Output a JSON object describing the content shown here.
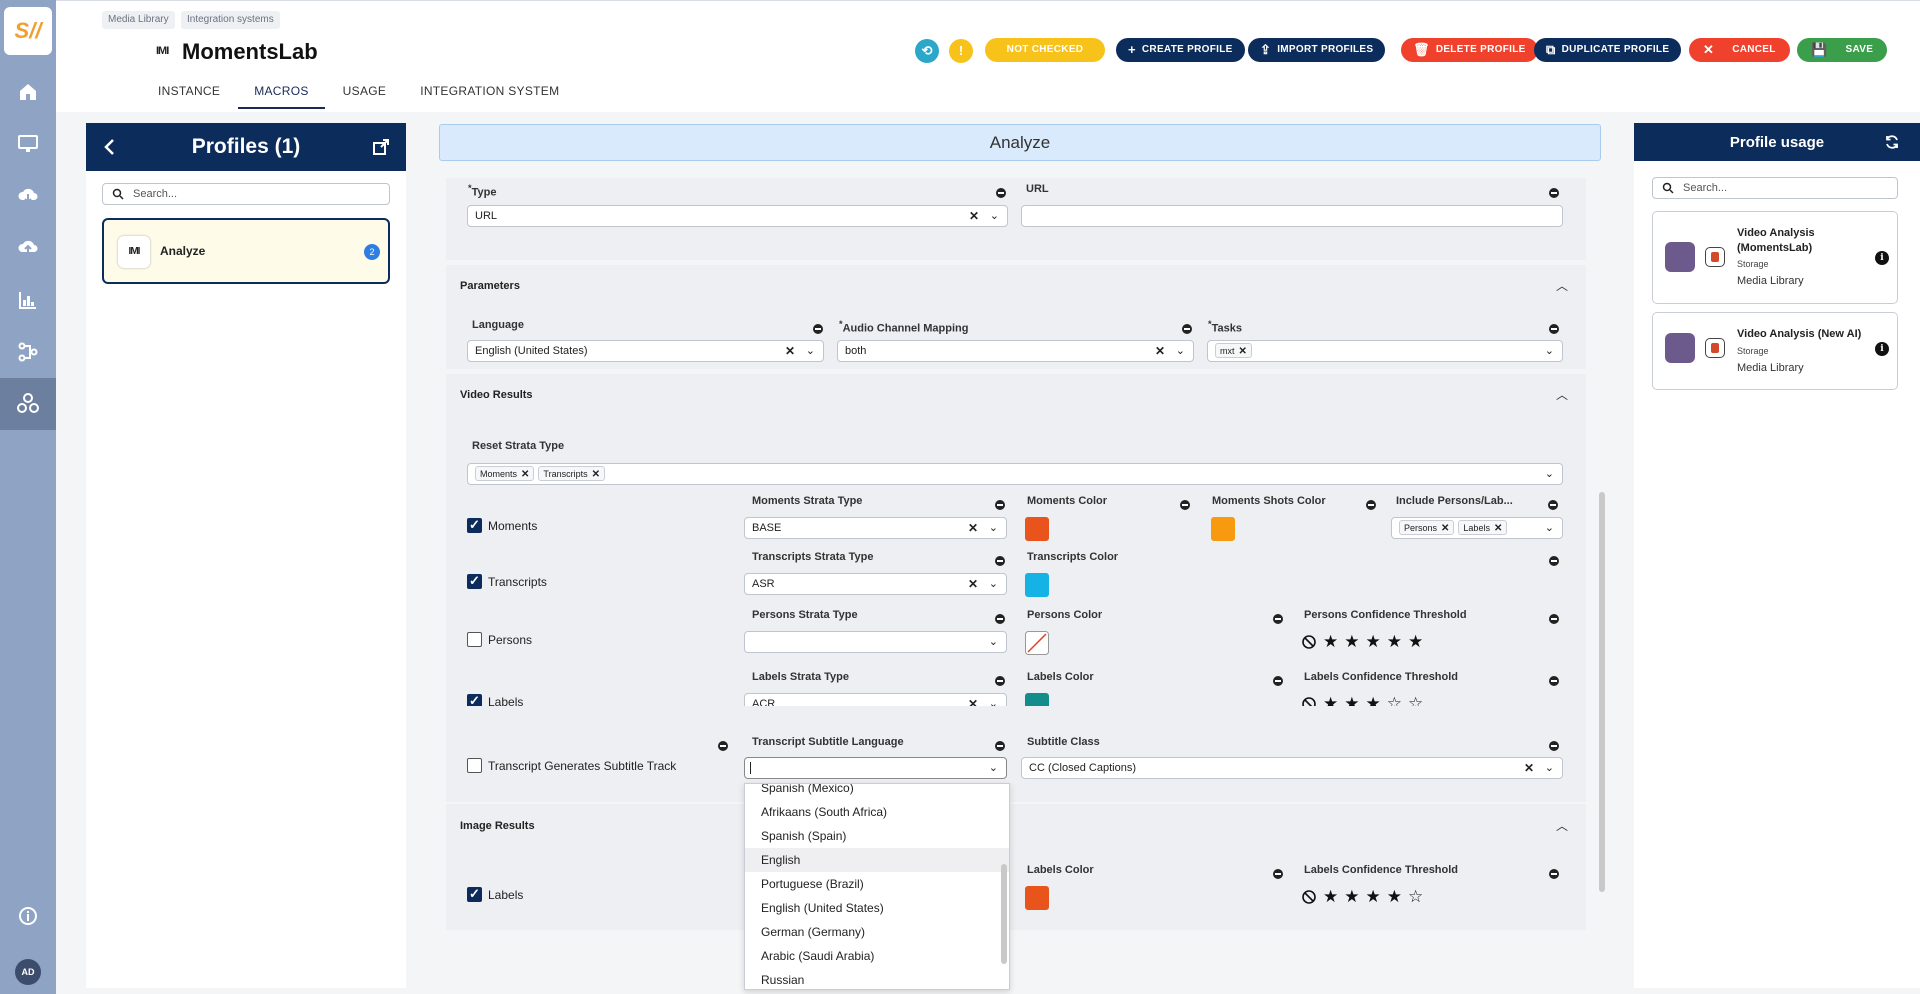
{
  "app": {
    "logo_text": "S//",
    "avatar": "AD"
  },
  "breadcrumb": [
    "Media Library",
    "Integration systems"
  ],
  "page": {
    "logo_text": "IMI",
    "title": "MomentsLab"
  },
  "tabs": [
    "INSTANCE",
    "MACROS",
    "USAGE",
    "INTEGRATION SYSTEM"
  ],
  "active_tab": "MACROS",
  "header_buttons": {
    "not_checked": "NOT CHECKED",
    "create": "CREATE PROFILE",
    "import": "IMPORT PROFILES",
    "delete": "DELETE PROFILE",
    "duplicate": "DUPLICATE PROFILE",
    "cancel": "CANCEL",
    "save": "SAVE"
  },
  "colors": {
    "navy": "#0c2c5c",
    "yellow": "#f7c21a",
    "red": "#f0412d",
    "green": "#3a9e4a",
    "teal": "#2aa7c9"
  },
  "profiles": {
    "title": "Profiles (1)",
    "search_placeholder": "Search...",
    "items": [
      {
        "logo": "IMI",
        "name": "Analyze",
        "count": "2"
      }
    ]
  },
  "editor": {
    "profile_name": "Analyze",
    "type_label": "Type",
    "type_value": "URL",
    "url_label": "URL",
    "url_value": "",
    "parameters": {
      "title": "Parameters",
      "language_label": "Language",
      "language_value": "English (United States)",
      "audio_label": "Audio Channel Mapping",
      "audio_value": "both",
      "tasks_label": "Tasks",
      "tasks_chips": [
        "mxt"
      ]
    },
    "video_results": {
      "title": "Video Results",
      "reset_label": "Reset Strata Type",
      "reset_chips": [
        "Moments",
        "Transcripts"
      ],
      "moments": {
        "checkbox": "Moments",
        "checked": true,
        "strata_label": "Moments Strata Type",
        "strata_value": "BASE",
        "color_label": "Moments Color",
        "color": "#e8541c",
        "shots_label": "Moments Shots Color",
        "shots_color": "#f79a0f",
        "include_label": "Include Persons/Lab...",
        "include_chips": [
          "Persons",
          "Labels"
        ]
      },
      "transcripts": {
        "checkbox": "Transcripts",
        "checked": true,
        "strata_label": "Transcripts Strata Type",
        "strata_value": "ASR",
        "color_label": "Transcripts Color",
        "color": "#15b2e6"
      },
      "persons": {
        "checkbox": "Persons",
        "checked": false,
        "strata_label": "Persons Strata Type",
        "strata_value": "",
        "color_label": "Persons Color",
        "threshold_label": "Persons Confidence Threshold",
        "threshold": 5
      },
      "labels": {
        "checkbox": "Labels",
        "checked": true,
        "strata_label": "Labels Strata Type",
        "strata_value": "ACR",
        "color_label": "Labels Color",
        "color": "#138c8c",
        "threshold_label": "Labels Confidence Threshold",
        "threshold": 3
      },
      "subtitle": {
        "checkbox": "Transcript Generates Subtitle Track",
        "checked": false,
        "language_label": "Transcript Subtitle Language",
        "language_value": "",
        "class_label": "Subtitle Class",
        "class_value": "CC (Closed Captions)"
      }
    },
    "image_results": {
      "title": "Image Results",
      "labels": {
        "checkbox": "Labels",
        "checked": true,
        "color_label": "Labels Color",
        "color": "#e8541c",
        "threshold_label": "Labels Confidence Threshold",
        "threshold": 4
      }
    },
    "language_dropdown": {
      "options": [
        "Spanish (Mexico)",
        "Afrikaans (South Africa)",
        "Spanish (Spain)",
        "English",
        "Portuguese (Brazil)",
        "English (United States)",
        "German (Germany)",
        "Arabic (Saudi Arabia)",
        "Russian"
      ],
      "highlighted": "English"
    }
  },
  "usage": {
    "title": "Profile usage",
    "search_placeholder": "Search...",
    "items": [
      {
        "name": "Video Analysis (MomentsLab)",
        "type": "Storage",
        "library": "Media Library"
      },
      {
        "name": "Video Analysis (New AI)",
        "type": "Storage",
        "library": "Media Library"
      }
    ]
  }
}
